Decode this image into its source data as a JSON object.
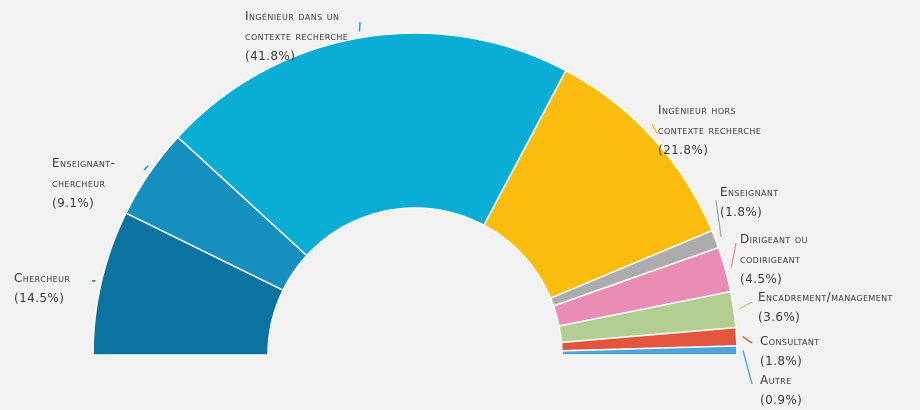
{
  "chart_data": {
    "type": "pie",
    "variant": "semi-donut",
    "start": "left",
    "title": "",
    "slices": [
      {
        "label": "Chercheur",
        "value": 14.5,
        "value_label": "(14.5%)",
        "color": "#0b739f"
      },
      {
        "label": "Enseignant-chercheur",
        "value": 9.1,
        "value_label": "(9.1%)",
        "color": "#158fbd"
      },
      {
        "label": "Ingénieur dans un contexte recherche",
        "value": 41.8,
        "value_label": "(41.8%)",
        "color": "#0aadd4"
      },
      {
        "label": "Ingénieur hors contexte recherche",
        "value": 21.8,
        "value_label": "(21.8%)",
        "color": "#fdbd0f"
      },
      {
        "label": "Enseignant",
        "value": 1.8,
        "value_label": "(1.8%)",
        "color": "#acacac"
      },
      {
        "label": "Dirigeant ou codirigeant",
        "value": 4.5,
        "value_label": "(4.5%)",
        "color": "#e98db5"
      },
      {
        "label": "Encadrement/management",
        "value": 3.6,
        "value_label": "(3.6%)",
        "color": "#b3ce93"
      },
      {
        "label": "Consultant",
        "value": 1.8,
        "value_label": "(1.8%)",
        "color": "#e4553d"
      },
      {
        "label": "Autre",
        "value": 0.9,
        "value_label": "(0.9%)",
        "color": "#4ea6dc"
      }
    ]
  }
}
